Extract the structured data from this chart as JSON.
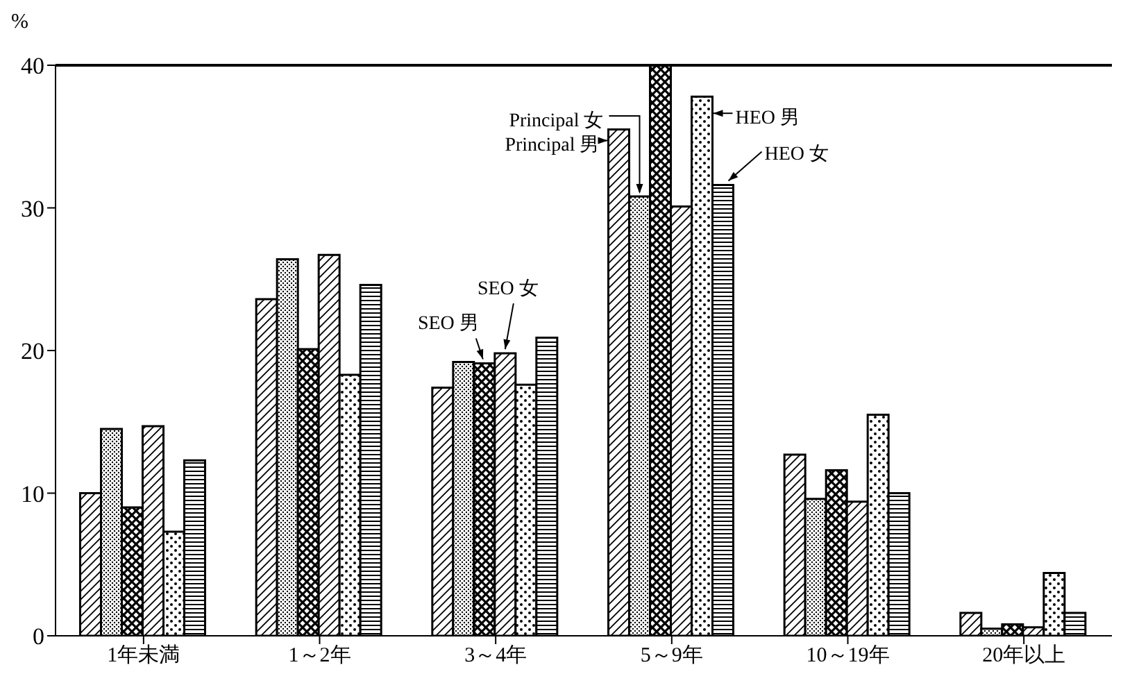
{
  "chart_data": {
    "type": "bar",
    "ylabel": "%",
    "categories": [
      "1年未満",
      "1～2年",
      "3～4年",
      "5～9年",
      "10～19年",
      "20年以上"
    ],
    "series": [
      {
        "name": "Principal 男",
        "color": "#000000",
        "values": [
          10.0,
          23.6,
          17.4,
          35.5,
          12.7,
          1.6
        ]
      },
      {
        "name": "Principal 女",
        "color": "#000000",
        "values": [
          14.5,
          26.4,
          19.2,
          30.8,
          9.6,
          0.5
        ]
      },
      {
        "name": "SEO 男",
        "color": "#000000",
        "values": [
          9.0,
          20.1,
          19.1,
          40,
          11.6,
          0.8
        ]
      },
      {
        "name": "SEO 女",
        "color": "#000000",
        "values": [
          14.7,
          26.7,
          19.8,
          30.1,
          9.4,
          0.6
        ]
      },
      {
        "name": "HEO 男",
        "color": "#000000",
        "values": [
          7.3,
          18.3,
          17.6,
          37.8,
          15.5,
          4.4
        ]
      },
      {
        "name": "HEO 女",
        "color": "#000000",
        "values": [
          12.3,
          24.6,
          20.9,
          31.6,
          10.0,
          1.6
        ]
      }
    ],
    "ylim": [
      0,
      40
    ],
    "yticks": [
      0,
      10,
      20,
      30,
      40
    ],
    "grid": false,
    "legend": false
  }
}
